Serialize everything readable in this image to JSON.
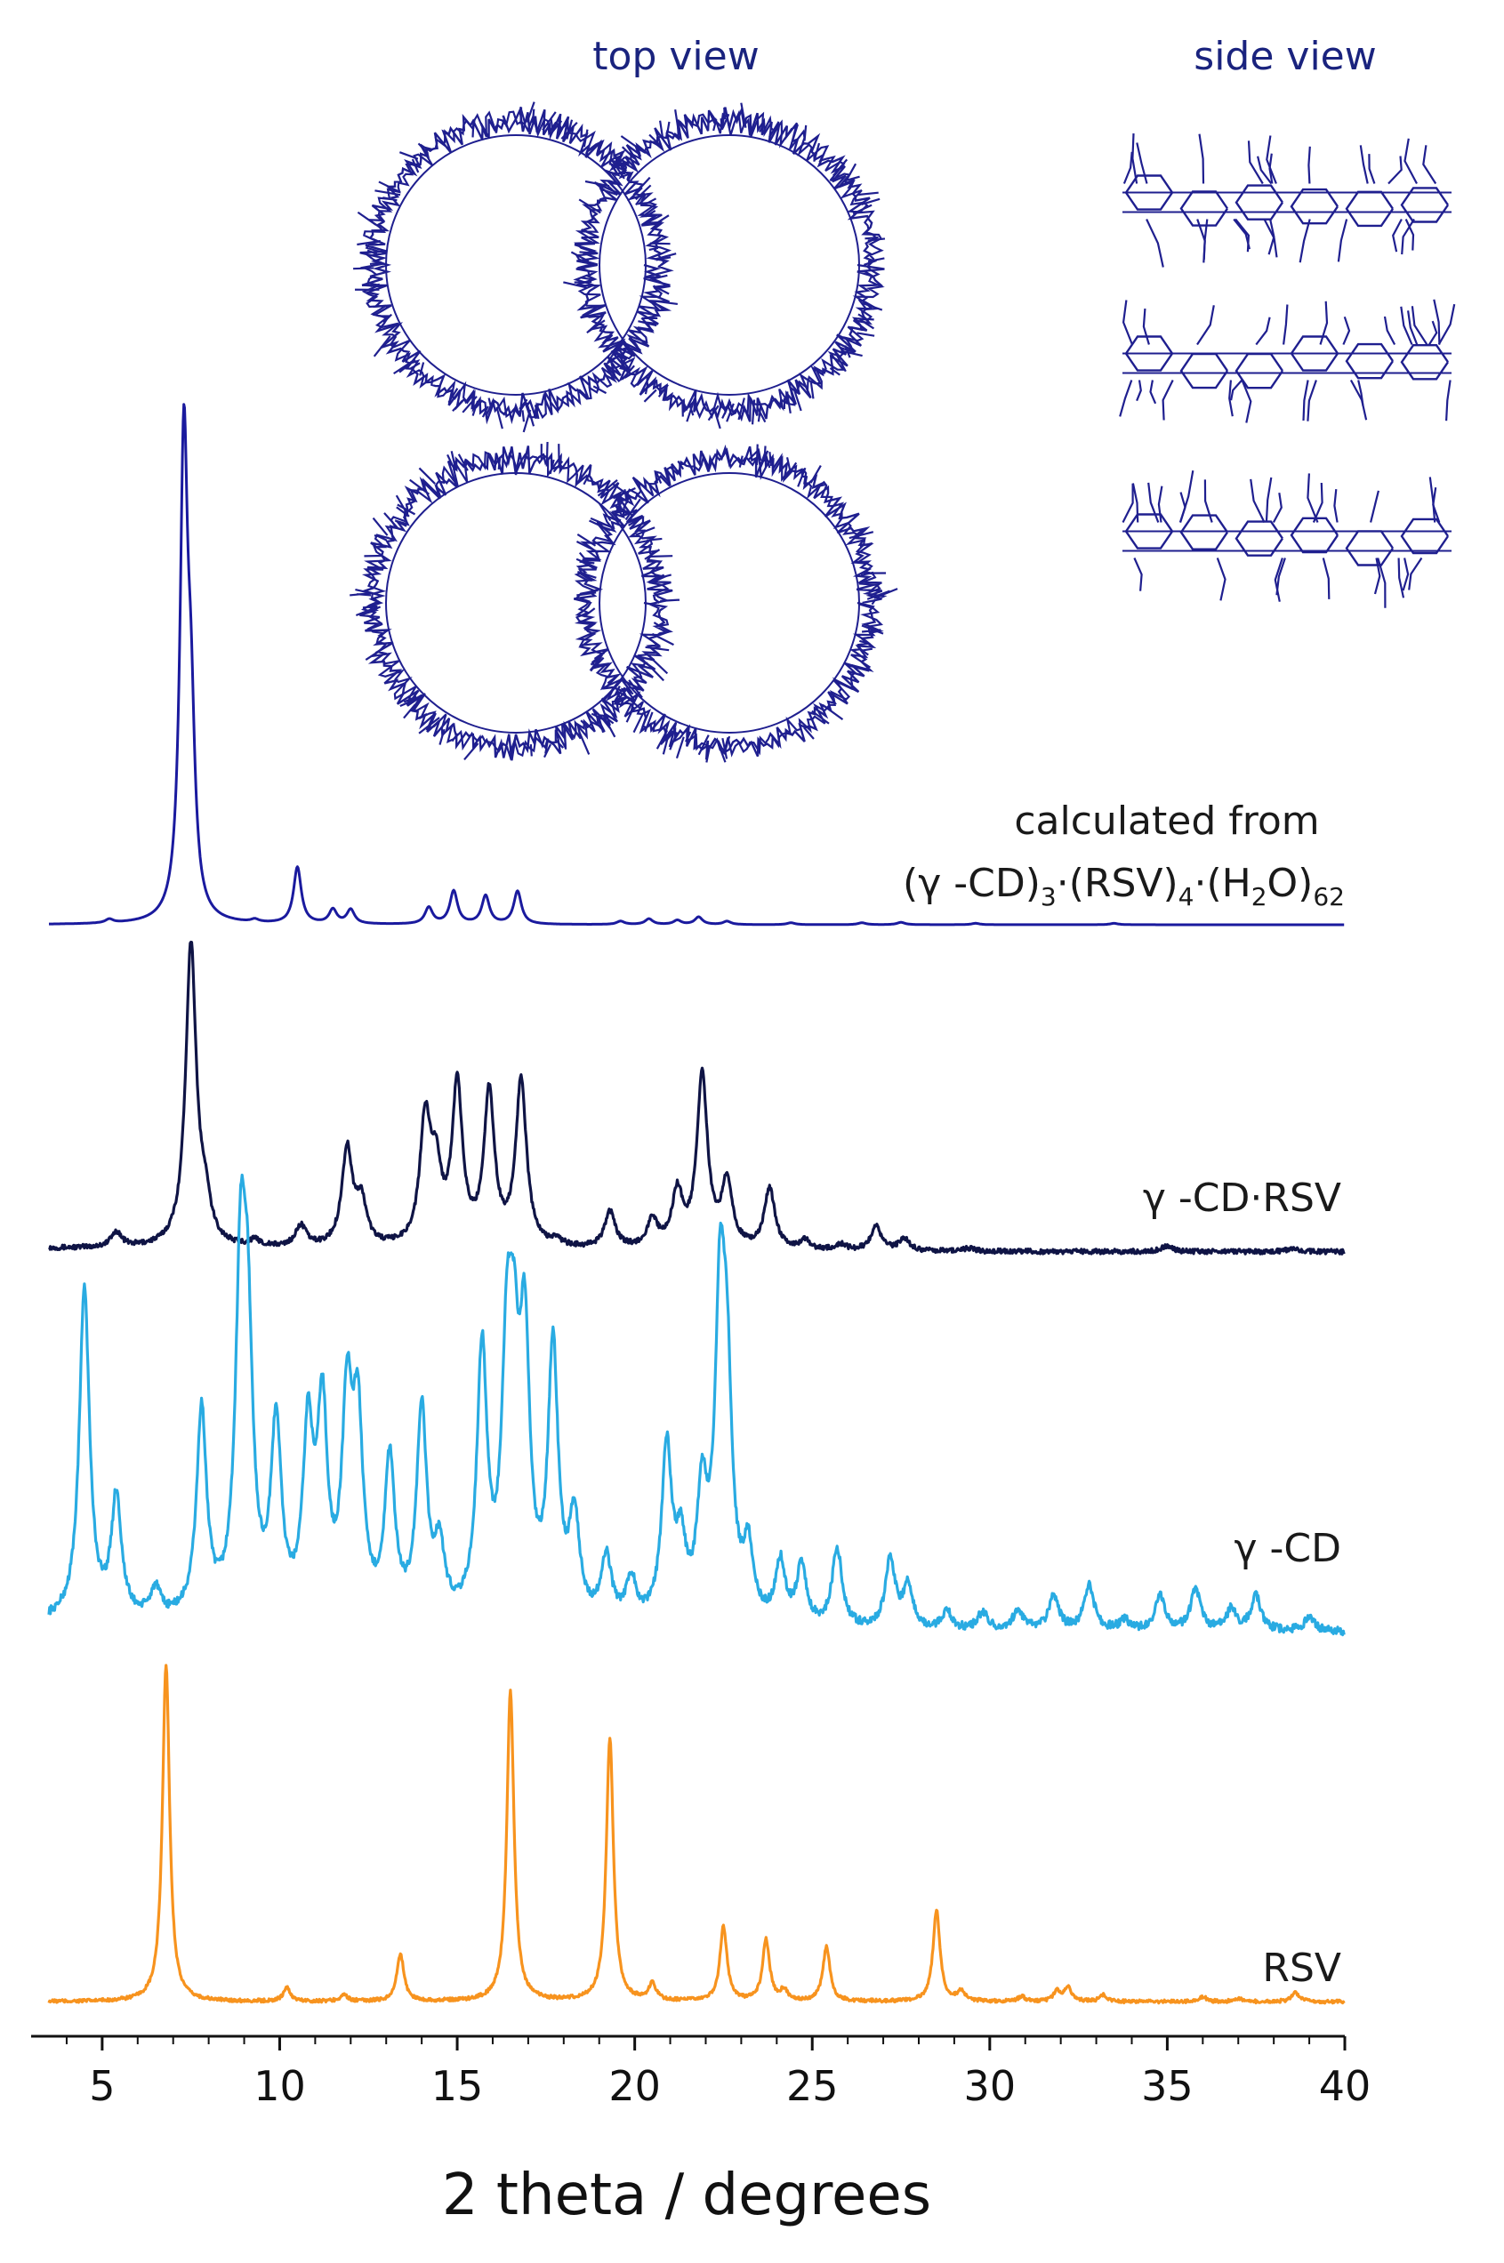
{
  "chart_data": {
    "type": "line",
    "title": "",
    "xlabel": "2 theta / degrees",
    "ylabel": "",
    "xlim": [
      3.5,
      40
    ],
    "xticks": [
      5,
      10,
      15,
      20,
      25,
      30,
      35,
      40
    ],
    "xtick_labels": [
      "5",
      "10",
      "15",
      "20",
      "25",
      "30",
      "35",
      "40"
    ],
    "grid": false,
    "legend": "none",
    "y_axis_shown": false,
    "series": [
      {
        "key": "calc",
        "label_line1": "calculated from",
        "label_line2_parts": [
          "(γ -CD)",
          "3",
          "·(RSV)",
          "4",
          "·(H",
          "2",
          "O)",
          "62"
        ],
        "color": "#1a1a9e",
        "baseline": 0.0,
        "noise": 0.0,
        "peaks": [
          [
            5.2,
            0.8
          ],
          [
            7.3,
            100
          ],
          [
            7.5,
            35
          ],
          [
            9.3,
            0.6
          ],
          [
            10.5,
            12
          ],
          [
            11.5,
            3
          ],
          [
            12.0,
            3
          ],
          [
            14.2,
            3.5
          ],
          [
            14.9,
            7
          ],
          [
            15.8,
            6
          ],
          [
            16.7,
            7
          ],
          [
            19.6,
            0.7
          ],
          [
            20.4,
            1.2
          ],
          [
            21.2,
            0.9
          ],
          [
            21.8,
            1.6
          ],
          [
            22.6,
            0.7
          ],
          [
            24.4,
            0.4
          ],
          [
            26.4,
            0.4
          ],
          [
            27.5,
            0.5
          ],
          [
            29.6,
            0.3
          ],
          [
            33.5,
            0.3
          ]
        ]
      },
      {
        "key": "gcdrsv",
        "label": "γ -CD·RSV",
        "color": "#0f1445",
        "baseline": 3,
        "noise": 0.8,
        "peaks": [
          [
            5.4,
            5
          ],
          [
            7.5,
            100
          ],
          [
            7.9,
            12
          ],
          [
            9.3,
            2
          ],
          [
            10.6,
            7
          ],
          [
            11.9,
            32
          ],
          [
            12.3,
            14
          ],
          [
            14.1,
            40
          ],
          [
            14.4,
            22
          ],
          [
            15.0,
            52
          ],
          [
            15.9,
            50
          ],
          [
            16.8,
            55
          ],
          [
            17.8,
            2
          ],
          [
            19.3,
            12
          ],
          [
            20.5,
            9
          ],
          [
            21.2,
            18
          ],
          [
            21.9,
            57
          ],
          [
            22.6,
            22
          ],
          [
            23.8,
            20
          ],
          [
            24.8,
            3
          ],
          [
            25.8,
            2
          ],
          [
            26.8,
            8
          ],
          [
            27.6,
            4
          ],
          [
            29.4,
            1
          ],
          [
            35.0,
            2
          ],
          [
            38.5,
            1
          ]
        ]
      },
      {
        "key": "gcd",
        "label": "γ -CD",
        "color": "#29abe2",
        "baseline": 2,
        "noise": 1.2,
        "peaks": [
          [
            4.5,
            97
          ],
          [
            5.4,
            35
          ],
          [
            6.5,
            8
          ],
          [
            7.8,
            60
          ],
          [
            8.9,
            94
          ],
          [
            9.1,
            70
          ],
          [
            9.9,
            55
          ],
          [
            10.8,
            52
          ],
          [
            11.2,
            58
          ],
          [
            11.9,
            59
          ],
          [
            12.2,
            54
          ],
          [
            13.1,
            45
          ],
          [
            14.0,
            60
          ],
          [
            14.5,
            19
          ],
          [
            15.7,
            77
          ],
          [
            16.4,
            67
          ],
          [
            16.6,
            55
          ],
          [
            16.9,
            75
          ],
          [
            17.7,
            78
          ],
          [
            18.3,
            29
          ],
          [
            19.2,
            18
          ],
          [
            19.9,
            12
          ],
          [
            20.9,
            50
          ],
          [
            21.3,
            20
          ],
          [
            21.9,
            35
          ],
          [
            22.4,
            85
          ],
          [
            22.6,
            60
          ],
          [
            23.2,
            20
          ],
          [
            24.1,
            18
          ],
          [
            24.7,
            17
          ],
          [
            25.7,
            23
          ],
          [
            27.2,
            20
          ],
          [
            27.7,
            12
          ],
          [
            28.8,
            5
          ],
          [
            29.8,
            5
          ],
          [
            30.8,
            6
          ],
          [
            31.8,
            10
          ],
          [
            32.8,
            13
          ],
          [
            33.8,
            3
          ],
          [
            34.8,
            10
          ],
          [
            35.8,
            12
          ],
          [
            36.8,
            6
          ],
          [
            37.5,
            10
          ],
          [
            39.0,
            4
          ]
        ]
      },
      {
        "key": "rsv",
        "label": "RSV",
        "color": "#f7931e",
        "baseline": 1,
        "noise": 0.5,
        "peaks": [
          [
            6.8,
            100
          ],
          [
            10.2,
            4
          ],
          [
            11.8,
            2
          ],
          [
            13.4,
            14
          ],
          [
            16.5,
            92
          ],
          [
            19.3,
            78
          ],
          [
            20.5,
            5
          ],
          [
            22.5,
            22
          ],
          [
            23.7,
            18
          ],
          [
            24.2,
            3
          ],
          [
            25.4,
            16
          ],
          [
            28.5,
            27
          ],
          [
            29.2,
            3
          ],
          [
            30.9,
            1.5
          ],
          [
            31.9,
            3
          ],
          [
            32.2,
            4
          ],
          [
            33.2,
            2
          ],
          [
            36.0,
            1.5
          ],
          [
            37.0,
            1
          ],
          [
            38.6,
            3
          ]
        ]
      }
    ],
    "insets": {
      "top_view_label": "top view",
      "side_view_label": "side view"
    }
  }
}
